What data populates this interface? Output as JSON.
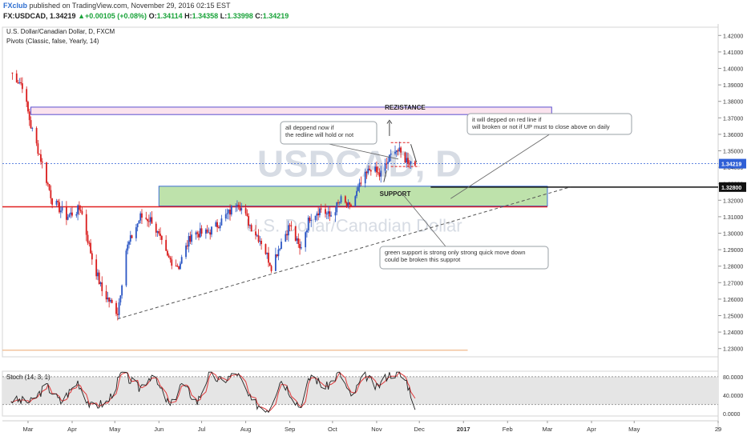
{
  "header": {
    "publisher": "FXclub",
    "published_text": "published on TradingView.com, November 29, 2016 02:15 EST",
    "symbol": "FX:USDCAD,",
    "price": "1.34219",
    "up_arrow": "▲",
    "change": "+0.00105 (+0.08%)",
    "open_label": "O:",
    "open": "1.34114",
    "high_label": "H:",
    "high": "1.34358",
    "low_label": "L:",
    "low": "1.33998",
    "close_label": "C:",
    "close": "1.34219"
  },
  "colors": {
    "bull": "#2b56c4",
    "bear": "#d91c1c",
    "support_fill": "#a8d88f",
    "resistance_fill": "#fbe3ee",
    "red_line": "#e02020",
    "stoch_k": "#222222",
    "stoch_d": "#e0383a",
    "price_tag": "#2f5fd6"
  },
  "chart_data": {
    "type": "candlestick",
    "title": "U.S. Dollar/Canadian Dollar, D, FXCM",
    "indicator_label": "Pivots (Classic, false, Yearly, 14)",
    "watermark_symbol": "USDCAD, D",
    "watermark_name": "U.S. Dollar/Canadian Dollar",
    "ylim": [
      1.225,
      1.425
    ],
    "y_ticks": [
      "1.42000",
      "1.41000",
      "1.40000",
      "1.39000",
      "1.38000",
      "1.37000",
      "1.36000",
      "1.35000",
      "1.34000",
      "1.33000",
      "1.32000",
      "1.31000",
      "1.30000",
      "1.29000",
      "1.28000",
      "1.27000",
      "1.26000",
      "1.25000",
      "1.24000",
      "1.23000"
    ],
    "x_ticks": [
      "Mar",
      "Apr",
      "May",
      "Jun",
      "Jul",
      "Aug",
      "Sep",
      "Oct",
      "Nov",
      "Dec",
      "2017",
      "Feb",
      "Mar",
      "Apr",
      "May",
      "29"
    ],
    "last_price_tag": "1.34219",
    "level_tag": "1.32800",
    "price_waypoints": [
      {
        "date": "2016-02-18",
        "price": 1.3975
      },
      {
        "date": "2016-02-26",
        "price": 1.39
      },
      {
        "date": "2016-03-03",
        "price": 1.365
      },
      {
        "date": "2016-03-10",
        "price": 1.345
      },
      {
        "date": "2016-03-18",
        "price": 1.32
      },
      {
        "date": "2016-03-28",
        "price": 1.31
      },
      {
        "date": "2016-04-07",
        "price": 1.315
      },
      {
        "date": "2016-04-15",
        "price": 1.285
      },
      {
        "date": "2016-04-22",
        "price": 1.265
      },
      {
        "date": "2016-05-03",
        "price": 1.252
      },
      {
        "date": "2016-05-09",
        "price": 1.29
      },
      {
        "date": "2016-05-19",
        "price": 1.31
      },
      {
        "date": "2016-05-27",
        "price": 1.308
      },
      {
        "date": "2016-06-07",
        "price": 1.285
      },
      {
        "date": "2016-06-15",
        "price": 1.28
      },
      {
        "date": "2016-06-24",
        "price": 1.3
      },
      {
        "date": "2016-07-05",
        "price": 1.3
      },
      {
        "date": "2016-07-12",
        "price": 1.305
      },
      {
        "date": "2016-07-21",
        "price": 1.313
      },
      {
        "date": "2016-07-26",
        "price": 1.32
      },
      {
        "date": "2016-08-04",
        "price": 1.305
      },
      {
        "date": "2016-08-12",
        "price": 1.295
      },
      {
        "date": "2016-08-19",
        "price": 1.28
      },
      {
        "date": "2016-08-26",
        "price": 1.295
      },
      {
        "date": "2016-09-01",
        "price": 1.305
      },
      {
        "date": "2016-09-08",
        "price": 1.29
      },
      {
        "date": "2016-09-15",
        "price": 1.31
      },
      {
        "date": "2016-09-23",
        "price": 1.315
      },
      {
        "date": "2016-09-29",
        "price": 1.31
      },
      {
        "date": "2016-10-07",
        "price": 1.32
      },
      {
        "date": "2016-10-13",
        "price": 1.315
      },
      {
        "date": "2016-10-21",
        "price": 1.33
      },
      {
        "date": "2016-10-28",
        "price": 1.34
      },
      {
        "date": "2016-11-03",
        "price": 1.335
      },
      {
        "date": "2016-11-08",
        "price": 1.342
      },
      {
        "date": "2016-11-14",
        "price": 1.352
      },
      {
        "date": "2016-11-21",
        "price": 1.345
      },
      {
        "date": "2016-11-28",
        "price": 1.3422
      }
    ],
    "stochastic": {
      "label": "Stoch (14, 3, 1)",
      "ylim": [
        -5,
        92
      ],
      "y_ticks": [
        "80.0000",
        "40.0000",
        "0.0000"
      ],
      "band": [
        20,
        80
      ],
      "k_waypoints": [
        {
          "date": "2016-02-18",
          "value": 30
        },
        {
          "date": "2016-03-03",
          "value": 25
        },
        {
          "date": "2016-03-14",
          "value": 60
        },
        {
          "date": "2016-03-24",
          "value": 25
        },
        {
          "date": "2016-04-05",
          "value": 70
        },
        {
          "date": "2016-04-14",
          "value": 15
        },
        {
          "date": "2016-04-26",
          "value": 25
        },
        {
          "date": "2016-05-06",
          "value": 88
        },
        {
          "date": "2016-05-18",
          "value": 55
        },
        {
          "date": "2016-05-27",
          "value": 85
        },
        {
          "date": "2016-06-09",
          "value": 15
        },
        {
          "date": "2016-06-17",
          "value": 65
        },
        {
          "date": "2016-06-28",
          "value": 25
        },
        {
          "date": "2016-07-06",
          "value": 85
        },
        {
          "date": "2016-07-15",
          "value": 70
        },
        {
          "date": "2016-07-26",
          "value": 88
        },
        {
          "date": "2016-08-05",
          "value": 25
        },
        {
          "date": "2016-08-17",
          "value": 10
        },
        {
          "date": "2016-08-26",
          "value": 75
        },
        {
          "date": "2016-09-08",
          "value": 15
        },
        {
          "date": "2016-09-16",
          "value": 85
        },
        {
          "date": "2016-09-26",
          "value": 55
        },
        {
          "date": "2016-10-06",
          "value": 90
        },
        {
          "date": "2016-10-14",
          "value": 35
        },
        {
          "date": "2016-10-24",
          "value": 85
        },
        {
          "date": "2016-11-01",
          "value": 55
        },
        {
          "date": "2016-11-09",
          "value": 85
        },
        {
          "date": "2016-11-16",
          "value": 88
        },
        {
          "date": "2016-11-22",
          "value": 70
        },
        {
          "date": "2016-11-28",
          "value": 18
        }
      ]
    },
    "annotations": [
      {
        "type": "zone",
        "label": "REZISTANCE",
        "from_date": "2016-03-03",
        "to_date": "2017-03-04",
        "low": 1.372,
        "high": 1.3765
      },
      {
        "type": "zone",
        "label": "SUPPORT",
        "from_date": "2016-06-01",
        "to_date": "2017-03-01",
        "low": 1.3165,
        "high": 1.3285
      },
      {
        "type": "hline",
        "label": "red line",
        "price": 1.316,
        "from_date": "2016-02-12",
        "to_date": "2017-03-01"
      },
      {
        "type": "hline",
        "label": "1.32800",
        "price": 1.328,
        "from_date": "2016-12-09",
        "to_date": "2017-06-29"
      },
      {
        "type": "trendline",
        "from": {
          "date": "2016-05-03",
          "price": 1.248
        },
        "to": {
          "date": "2017-03-17",
          "price": 1.328
        }
      },
      {
        "type": "text",
        "label": "all deppend now if\nthe redline will hold or not"
      },
      {
        "type": "text",
        "label": "it will depped on red line if\nwill broken or not if UP must to close above on daily"
      },
      {
        "type": "text",
        "label": "green support is strong only strong quick move down\ncould be broken this supprot"
      }
    ]
  }
}
